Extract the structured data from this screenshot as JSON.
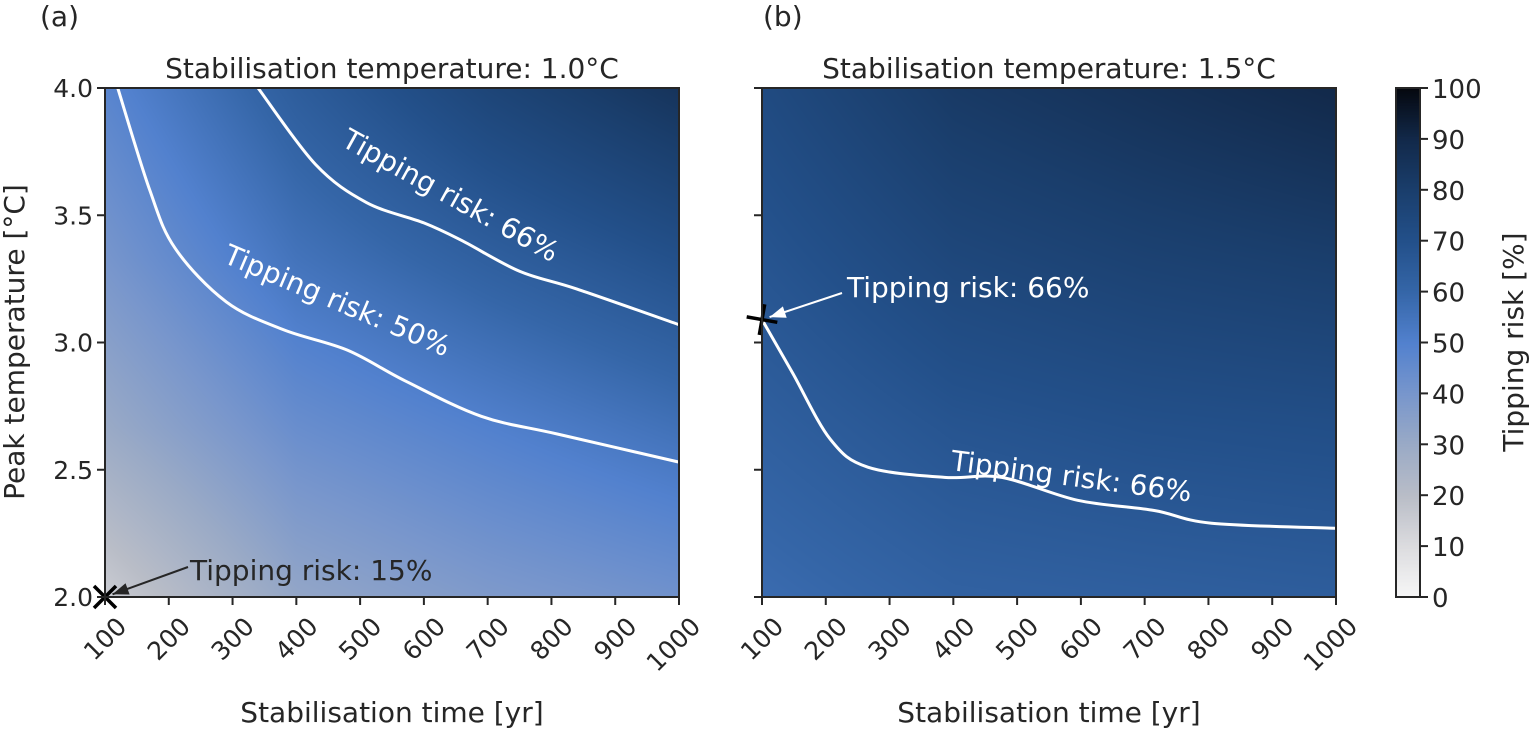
{
  "chart_data": {
    "type": "heatmap",
    "colormap": {
      "stops": [
        [
          0,
          "#f7f7f7"
        ],
        [
          10,
          "#dcdcdf"
        ],
        [
          20,
          "#b9bdc7"
        ],
        [
          30,
          "#9aaac6"
        ],
        [
          40,
          "#7896cc"
        ],
        [
          50,
          "#5281ce"
        ],
        [
          60,
          "#3566a8"
        ],
        [
          70,
          "#23508a"
        ],
        [
          80,
          "#1a3e6c"
        ],
        [
          90,
          "#12294a"
        ],
        [
          100,
          "#05080f"
        ]
      ]
    },
    "colorbar": {
      "label": "Tipping risk [%]",
      "range": [
        0,
        100
      ],
      "ticks": [
        "0",
        "10",
        "20",
        "30",
        "40",
        "50",
        "60",
        "70",
        "80",
        "90",
        "100"
      ]
    },
    "panels": [
      {
        "panel_label": "(a)",
        "title": "Stabilisation temperature: 1.0°C",
        "xlabel": "Stabilisation time [yr]",
        "ylabel": "Peak temperature [°C]",
        "xlim": [
          100,
          1000
        ],
        "ylim": [
          2.0,
          4.0
        ],
        "xticks": [
          "100",
          "200",
          "300",
          "400",
          "500",
          "600",
          "700",
          "800",
          "900",
          "1000"
        ],
        "yticks": [
          "2.0",
          "2.5",
          "3.0",
          "3.5",
          "4.0"
        ],
        "grid_x": [
          100,
          400,
          700,
          1000
        ],
        "grid_y": [
          2.0,
          2.67,
          3.33,
          4.0
        ],
        "values": [
          [
            15,
            32,
            38,
            42
          ],
          [
            30,
            44,
            50,
            56
          ],
          [
            40,
            55,
            63,
            70
          ],
          [
            48,
            64,
            76,
            85
          ]
        ],
        "contours": [
          {
            "level": 50,
            "label": "Tipping risk: 50%",
            "points": [
              [
                120,
                4.0
              ],
              [
                170,
                3.6
              ],
              [
                210,
                3.37
              ],
              [
                290,
                3.16
              ],
              [
                380,
                3.05
              ],
              [
                480,
                2.97
              ],
              [
                570,
                2.85
              ],
              [
                690,
                2.71
              ],
              [
                810,
                2.64
              ],
              [
                1000,
                2.53
              ]
            ]
          },
          {
            "level": 66,
            "label": "Tipping risk: 66%",
            "points": [
              [
                340,
                4.0
              ],
              [
                430,
                3.7
              ],
              [
                510,
                3.55
              ],
              [
                600,
                3.47
              ],
              [
                660,
                3.4
              ],
              [
                750,
                3.28
              ],
              [
                840,
                3.21
              ],
              [
                1000,
                3.07
              ]
            ]
          }
        ],
        "annotation": {
          "text": "Tipping risk: 15%",
          "point": [
            100,
            2.0
          ],
          "marker": "x"
        }
      },
      {
        "panel_label": "(b)",
        "title": "Stabilisation temperature: 1.5°C",
        "xlabel": "Stabilisation time [yr]",
        "xlim": [
          100,
          1000
        ],
        "ylim": [
          2.0,
          4.0
        ],
        "xticks": [
          "100",
          "200",
          "300",
          "400",
          "500",
          "600",
          "700",
          "800",
          "900",
          "1000"
        ],
        "grid_x": [
          100,
          400,
          700,
          1000
        ],
        "grid_y": [
          2.0,
          2.67,
          3.33,
          4.0
        ],
        "values": [
          [
            58,
            62,
            63,
            64
          ],
          [
            63,
            68,
            70,
            71
          ],
          [
            68,
            75,
            78,
            80
          ],
          [
            73,
            82,
            86,
            90
          ]
        ],
        "contours": [
          {
            "level": 66,
            "label": "Tipping risk: 66%",
            "points": [
              [
                100,
                3.09
              ],
              [
                148,
                2.88
              ],
              [
                207,
                2.62
              ],
              [
                266,
                2.51
              ],
              [
                386,
                2.47
              ],
              [
                476,
                2.47
              ],
              [
                595,
                2.38
              ],
              [
                715,
                2.34
              ],
              [
                805,
                2.29
              ],
              [
                1000,
                2.27
              ]
            ]
          }
        ],
        "annotation": {
          "text": "Tipping risk: 66%",
          "point": [
            100,
            3.09
          ],
          "marker": "x"
        }
      }
    ]
  }
}
